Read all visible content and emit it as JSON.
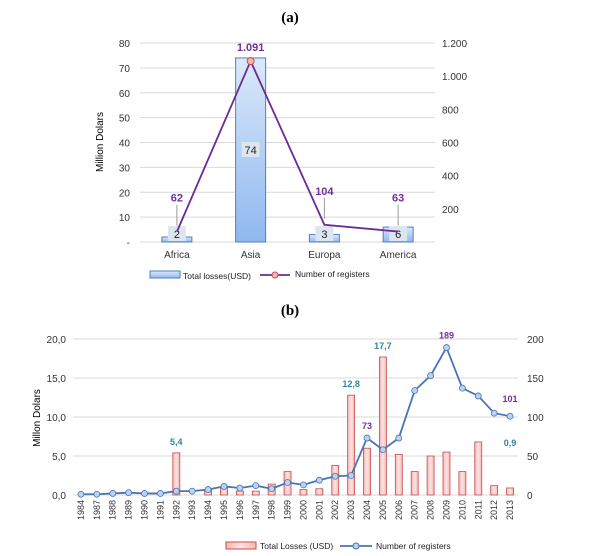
{
  "chart_data": [
    {
      "type": "bar",
      "panel_label": "(a)",
      "categories": [
        "Africa",
        "Asia",
        "Europa",
        "America"
      ],
      "series": [
        {
          "name": "Total losses(USD)",
          "kind": "bar",
          "axis": "left",
          "values": [
            2,
            74,
            3,
            6
          ],
          "data_labels": [
            "2",
            "74",
            "3",
            "6"
          ],
          "color": "#9dc3f0"
        },
        {
          "name": "Number of   registers",
          "kind": "line",
          "axis": "right",
          "values": [
            62,
            1091,
            104,
            63
          ],
          "data_labels": [
            "62",
            "1.091",
            "104",
            "63"
          ],
          "color": "#6a2c91"
        }
      ],
      "ylabel": "Million Dolars",
      "ylim": [
        0,
        80
      ],
      "yticks": [
        "-",
        "10",
        "20",
        "30",
        "40",
        "50",
        "60",
        "70",
        "80"
      ],
      "y2lim": [
        0,
        1200
      ],
      "y2ticks": [
        "200",
        "400",
        "600",
        "800",
        "1.000",
        "1.200"
      ],
      "grid": true,
      "legend": "bottom"
    },
    {
      "type": "bar",
      "panel_label": "(b)",
      "categories": [
        "1984",
        "1987",
        "1988",
        "1989",
        "1990",
        "1991",
        "1992",
        "1993",
        "1994",
        "1995",
        "1996",
        "1997",
        "1998",
        "1999",
        "2000",
        "2001",
        "2002",
        "2003",
        "2004",
        "2005",
        "2006",
        "2007",
        "2008",
        "2009",
        "2010",
        "2011",
        "2012",
        "2013"
      ],
      "series": [
        {
          "name": "Total Losses (USD)",
          "kind": "bar",
          "axis": "left",
          "color": "#f4a6a6",
          "values": [
            0,
            0,
            0,
            0,
            0,
            0,
            5.4,
            0,
            0.7,
            0.9,
            0.5,
            0.5,
            1.4,
            3.0,
            0.7,
            0.8,
            3.8,
            12.8,
            6.0,
            17.7,
            5.2,
            3.0,
            5.0,
            5.5,
            3.0,
            6.8,
            1.2,
            0.9
          ],
          "data_labels": {
            "1992": "5,4",
            "2003": "12,8",
            "2005": "17,7",
            "2013": "0,9"
          }
        },
        {
          "name": "Number of registers",
          "kind": "line",
          "axis": "right",
          "color": "#4a74b0",
          "values": [
            1,
            1,
            2,
            3,
            2,
            2,
            5,
            5,
            7,
            11,
            9,
            12,
            8,
            16,
            13,
            19,
            24,
            25,
            73,
            58,
            73,
            134,
            153,
            189,
            137,
            127,
            105,
            101
          ],
          "data_labels": {
            "2004": "73",
            "2009": "189",
            "2013": "101"
          }
        }
      ],
      "ylabel": "Millon Dolars",
      "ylim": [
        0,
        20
      ],
      "yticks": [
        "0,0",
        "5,0",
        "10,0",
        "15,0",
        "20,0"
      ],
      "y2lim": [
        0,
        200
      ],
      "y2ticks": [
        "0",
        "50",
        "100",
        "150",
        "200"
      ],
      "grid": true,
      "legend": "bottom"
    }
  ]
}
